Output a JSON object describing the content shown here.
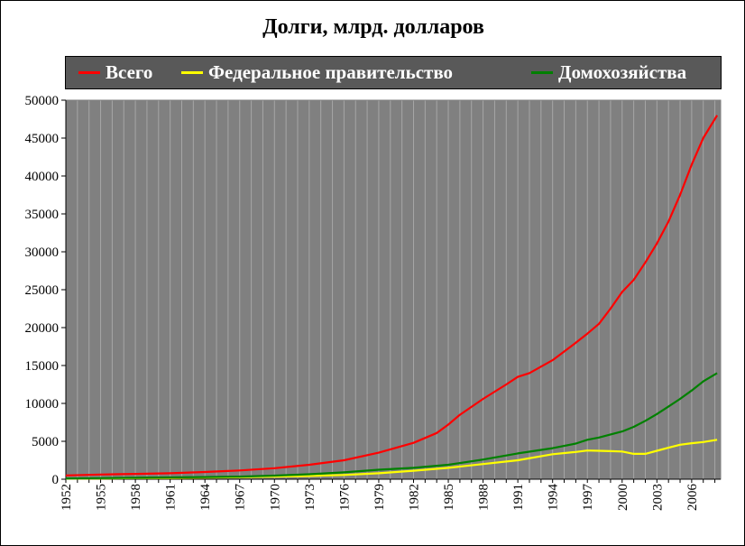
{
  "chart_data": {
    "type": "line",
    "title": "Долги, млрд. долларов",
    "xlabel": "",
    "ylabel": "",
    "ylim": [
      0,
      50000
    ],
    "yticks": [
      0,
      5000,
      10000,
      15000,
      20000,
      25000,
      30000,
      35000,
      40000,
      45000,
      50000
    ],
    "xlim": [
      1952,
      2008.5
    ],
    "xticks": [
      1952,
      1955,
      1958,
      1961,
      1964,
      1967,
      1970,
      1973,
      1976,
      1979,
      1982,
      1985,
      1988,
      1991,
      1994,
      1997,
      2000,
      2003,
      2006
    ],
    "grid": true,
    "legend_position": "top",
    "plot_background": "#808080",
    "series": [
      {
        "name": "Всего",
        "color": "#ff0000",
        "x": [
          1952,
          1955,
          1958,
          1961,
          1964,
          1967,
          1970,
          1973,
          1976,
          1979,
          1982,
          1984,
          1985,
          1986,
          1988,
          1990,
          1991,
          1992,
          1994,
          1996,
          1997,
          1998,
          1999,
          2000,
          2001,
          2002,
          2003,
          2004,
          2005,
          2006,
          2007,
          2008.2
        ],
        "y": [
          500,
          620,
          700,
          780,
          950,
          1150,
          1450,
          1900,
          2500,
          3500,
          4800,
          6100,
          7200,
          8500,
          10600,
          12500,
          13500,
          14000,
          15700,
          18000,
          19200,
          20500,
          22500,
          24700,
          26300,
          28600,
          31100,
          34000,
          37500,
          41500,
          45000,
          48000
        ]
      },
      {
        "name": "Федеральное правительство",
        "color": "#ffff00",
        "x": [
          1952,
          1955,
          1958,
          1961,
          1964,
          1967,
          1970,
          1973,
          1976,
          1979,
          1982,
          1985,
          1988,
          1991,
          1994,
          1996,
          1997,
          1998,
          1999,
          2000,
          2001,
          2002,
          2003,
          2004,
          2005,
          2006,
          2007,
          2008.2
        ],
        "y": [
          80,
          110,
          140,
          170,
          220,
          260,
          330,
          430,
          560,
          790,
          1120,
          1500,
          2000,
          2500,
          3300,
          3600,
          3780,
          3750,
          3700,
          3650,
          3350,
          3350,
          3750,
          4150,
          4550,
          4750,
          4900,
          5200
        ]
      },
      {
        "name": "Домохозяйства",
        "color": "#008000",
        "x": [
          1952,
          1955,
          1958,
          1961,
          1964,
          1967,
          1970,
          1973,
          1976,
          1979,
          1982,
          1985,
          1988,
          1991,
          1994,
          1996,
          1997,
          1998,
          1999,
          2000,
          2001,
          2002,
          2003,
          2004,
          2005,
          2006,
          2007,
          2008.2
        ],
        "y": [
          90,
          140,
          190,
          240,
          290,
          350,
          480,
          650,
          900,
          1250,
          1500,
          1900,
          2600,
          3400,
          4100,
          4700,
          5200,
          5500,
          5900,
          6300,
          6900,
          7700,
          8600,
          9600,
          10600,
          11700,
          12900,
          14000
        ]
      }
    ]
  }
}
